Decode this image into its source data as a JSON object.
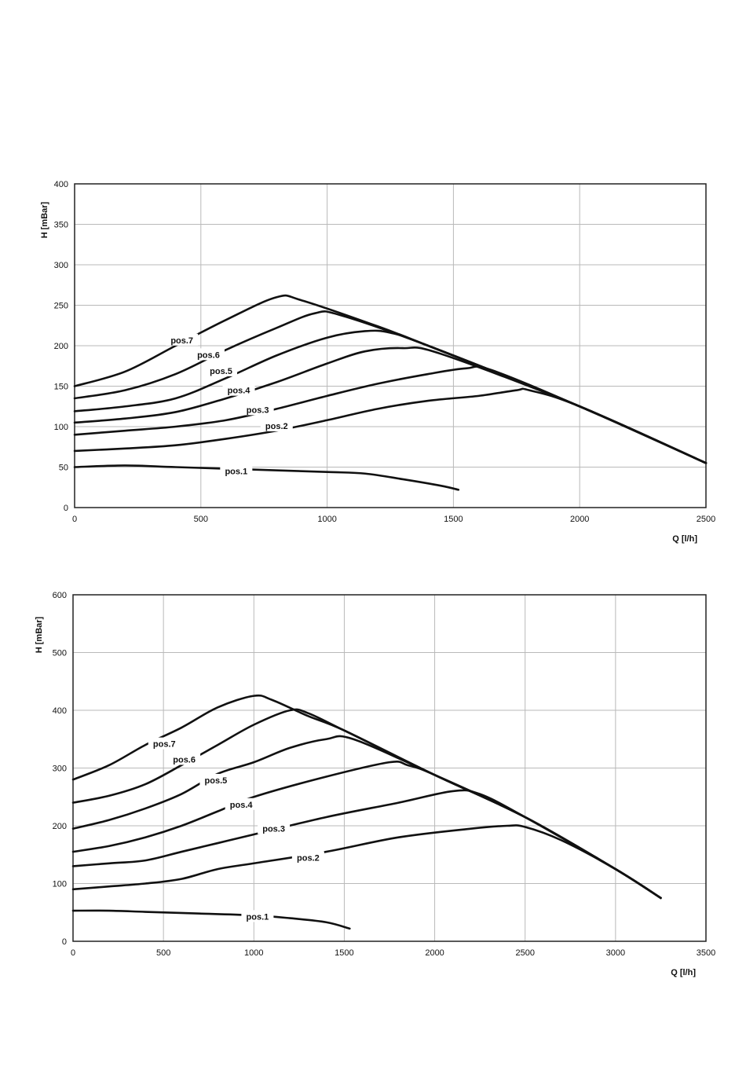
{
  "chart_data": [
    {
      "type": "line",
      "xlabel": "Q [l/h]",
      "ylabel": "H [mBar]",
      "xlim": [
        0,
        2500
      ],
      "ylim": [
        0,
        400
      ],
      "xticks": [
        0,
        500,
        1000,
        1500,
        2000,
        2500
      ],
      "yticks": [
        0,
        50,
        100,
        150,
        200,
        250,
        300,
        350,
        400
      ],
      "grid": true,
      "series": [
        {
          "name": "pos.1",
          "label_at": [
            640,
            45
          ],
          "points": [
            [
              0,
              50
            ],
            [
              200,
              52
            ],
            [
              400,
              50
            ],
            [
              700,
              47
            ],
            [
              1000,
              44
            ],
            [
              1150,
              42
            ],
            [
              1300,
              35
            ],
            [
              1450,
              27
            ],
            [
              1520,
              22
            ]
          ]
        },
        {
          "name": "pos.2",
          "label_at": [
            800,
            101
          ],
          "points": [
            [
              0,
              70
            ],
            [
              200,
              73
            ],
            [
              400,
              77
            ],
            [
              600,
              85
            ],
            [
              800,
              95
            ],
            [
              1000,
              108
            ],
            [
              1200,
              122
            ],
            [
              1400,
              132
            ],
            [
              1600,
              138
            ],
            [
              1750,
              145
            ],
            [
              1800,
              145
            ],
            [
              2000,
              125
            ],
            [
              2500,
              55
            ]
          ]
        },
        {
          "name": "pos.3",
          "label_at": [
            725,
            121
          ],
          "points": [
            [
              0,
              90
            ],
            [
              200,
              95
            ],
            [
              400,
              100
            ],
            [
              600,
              108
            ],
            [
              800,
              122
            ],
            [
              1000,
              138
            ],
            [
              1200,
              153
            ],
            [
              1400,
              165
            ],
            [
              1550,
              172
            ],
            [
              1650,
              170
            ],
            [
              2000,
              125
            ],
            [
              2500,
              55
            ]
          ]
        },
        {
          "name": "pos.4",
          "label_at": [
            650,
            145
          ],
          "points": [
            [
              0,
              105
            ],
            [
              200,
              110
            ],
            [
              400,
              118
            ],
            [
              600,
              135
            ],
            [
              800,
              155
            ],
            [
              1000,
              178
            ],
            [
              1150,
              193
            ],
            [
              1300,
              197
            ],
            [
              1450,
              190
            ],
            [
              2000,
              125
            ],
            [
              2500,
              55
            ]
          ]
        },
        {
          "name": "pos.5",
          "label_at": [
            580,
            169
          ],
          "points": [
            [
              0,
              119
            ],
            [
              200,
              125
            ],
            [
              400,
              135
            ],
            [
              600,
              160
            ],
            [
              800,
              188
            ],
            [
              1000,
              210
            ],
            [
              1150,
              218
            ],
            [
              1250,
              216
            ],
            [
              1400,
              200
            ],
            [
              2000,
              125
            ],
            [
              2500,
              55
            ]
          ]
        },
        {
          "name": "pos.6",
          "label_at": [
            530,
            189
          ],
          "points": [
            [
              0,
              135
            ],
            [
              200,
              145
            ],
            [
              400,
              165
            ],
            [
              600,
              195
            ],
            [
              800,
              222
            ],
            [
              950,
              240
            ],
            [
              1050,
              238
            ],
            [
              1400,
              200
            ],
            [
              2000,
              125
            ],
            [
              2500,
              55
            ]
          ]
        },
        {
          "name": "pos.7",
          "label_at": [
            425,
            207
          ],
          "points": [
            [
              0,
              150
            ],
            [
              200,
              168
            ],
            [
              400,
              200
            ],
            [
              600,
              232
            ],
            [
              800,
              260
            ],
            [
              900,
              256
            ],
            [
              1200,
              224
            ],
            [
              1400,
              200
            ],
            [
              2000,
              125
            ],
            [
              2500,
              55
            ]
          ]
        }
      ]
    },
    {
      "type": "line",
      "xlabel": "Q [l/h]",
      "ylabel": "H [mBar]",
      "xlim": [
        0,
        3500
      ],
      "ylim": [
        0,
        600
      ],
      "xticks": [
        0,
        500,
        1000,
        1500,
        2000,
        2500,
        3000,
        3500
      ],
      "yticks": [
        0,
        100,
        200,
        300,
        400,
        500,
        600
      ],
      "grid": true,
      "series": [
        {
          "name": "pos.1",
          "label_at": [
            1020,
            43
          ],
          "points": [
            [
              0,
              53
            ],
            [
              200,
              53
            ],
            [
              400,
              51
            ],
            [
              700,
              48
            ],
            [
              1000,
              45
            ],
            [
              1200,
              40
            ],
            [
              1400,
              33
            ],
            [
              1530,
              22
            ]
          ]
        },
        {
          "name": "pos.2",
          "label_at": [
            1300,
            145
          ],
          "points": [
            [
              0,
              90
            ],
            [
              200,
              95
            ],
            [
              400,
              100
            ],
            [
              600,
              108
            ],
            [
              800,
              125
            ],
            [
              1000,
              135
            ],
            [
              1400,
              155
            ],
            [
              1800,
              180
            ],
            [
              2200,
              195
            ],
            [
              2400,
              200
            ],
            [
              2500,
              198
            ],
            [
              2700,
              175
            ],
            [
              3000,
              125
            ],
            [
              3250,
              75
            ]
          ]
        },
        {
          "name": "pos.3",
          "label_at": [
            1110,
            195
          ],
          "points": [
            [
              0,
              130
            ],
            [
              200,
              135
            ],
            [
              400,
              140
            ],
            [
              600,
              155
            ],
            [
              800,
              170
            ],
            [
              1000,
              185
            ],
            [
              1400,
              215
            ],
            [
              1800,
              240
            ],
            [
              2100,
              260
            ],
            [
              2250,
              255
            ],
            [
              2500,
              215
            ],
            [
              3000,
              125
            ],
            [
              3250,
              75
            ]
          ]
        },
        {
          "name": "pos.4",
          "label_at": [
            930,
            237
          ],
          "points": [
            [
              0,
              155
            ],
            [
              200,
              165
            ],
            [
              400,
              180
            ],
            [
              600,
              200
            ],
            [
              800,
              225
            ],
            [
              1000,
              250
            ],
            [
              1400,
              285
            ],
            [
              1750,
              310
            ],
            [
              1850,
              305
            ],
            [
              2000,
              288
            ],
            [
              2500,
              215
            ],
            [
              3000,
              125
            ],
            [
              3250,
              75
            ]
          ]
        },
        {
          "name": "pos.5",
          "label_at": [
            790,
            279
          ],
          "points": [
            [
              0,
              195
            ],
            [
              200,
              210
            ],
            [
              400,
              230
            ],
            [
              600,
              255
            ],
            [
              800,
              290
            ],
            [
              1000,
              310
            ],
            [
              1200,
              335
            ],
            [
              1400,
              350
            ],
            [
              1550,
              350
            ],
            [
              2000,
              288
            ],
            [
              2500,
              215
            ],
            [
              3000,
              125
            ],
            [
              3250,
              75
            ]
          ]
        },
        {
          "name": "pos.6",
          "label_at": [
            615,
            315
          ],
          "points": [
            [
              0,
              240
            ],
            [
              200,
              252
            ],
            [
              400,
              272
            ],
            [
              600,
              305
            ],
            [
              800,
              340
            ],
            [
              1000,
              375
            ],
            [
              1200,
              400
            ],
            [
              1300,
              395
            ],
            [
              1500,
              365
            ],
            [
              2000,
              288
            ],
            [
              2500,
              215
            ],
            [
              3000,
              125
            ],
            [
              3250,
              75
            ]
          ]
        },
        {
          "name": "pos.7",
          "label_at": [
            505,
            342
          ],
          "points": [
            [
              0,
              280
            ],
            [
              200,
              305
            ],
            [
              400,
              340
            ],
            [
              600,
              370
            ],
            [
              800,
              405
            ],
            [
              1000,
              425
            ],
            [
              1100,
              418
            ],
            [
              1300,
              390
            ],
            [
              1500,
              365
            ],
            [
              2000,
              288
            ],
            [
              2500,
              215
            ],
            [
              3000,
              125
            ],
            [
              3250,
              75
            ]
          ]
        }
      ]
    }
  ]
}
